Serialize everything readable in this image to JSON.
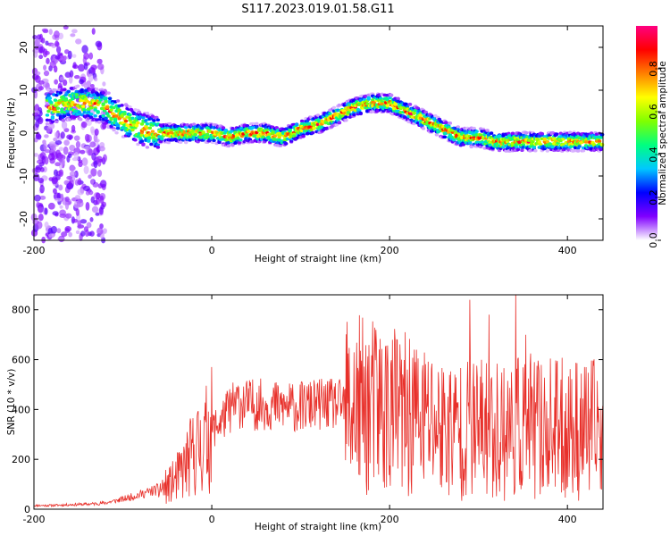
{
  "title": "S117.2023.019.01.58.G11",
  "chart_data": [
    {
      "type": "heatmap",
      "name": "spectrogram",
      "title": "S117.2023.019.01.58.G11",
      "xlabel": "Height of straight line (km)",
      "ylabel": "Frequency (Hz)",
      "xlim": [
        -200,
        440
      ],
      "ylim": [
        -25,
        25
      ],
      "xticks": [
        -200,
        0,
        200,
        400
      ],
      "yticks": [
        -20,
        -10,
        0,
        10,
        20
      ],
      "ridge_center_x": [
        -180,
        -160,
        -140,
        -120,
        -100,
        -80,
        -60,
        -40,
        -20,
        0,
        20,
        40,
        60,
        80,
        100,
        120,
        140,
        160,
        180,
        200,
        220,
        240,
        260,
        280,
        300,
        320,
        340,
        360,
        380,
        400,
        420,
        440
      ],
      "ridge_center_y": [
        6,
        7,
        7,
        6,
        3,
        1,
        0,
        0,
        0,
        0,
        -1,
        0,
        0,
        -1,
        1,
        2,
        4,
        6,
        7,
        7,
        5,
        3,
        1,
        -1,
        -1,
        -2,
        -2,
        -2,
        -2,
        -2,
        -2,
        -2
      ],
      "colorbar": {
        "label": "Normalized spectral amplitude",
        "range": [
          0,
          1
        ],
        "ticks": [
          "0.0",
          "0.2",
          "0.4",
          "0.6",
          "0.8"
        ],
        "colors": [
          "#ffffff",
          "#8000ff",
          "#0000ff",
          "#00c8ff",
          "#00ff80",
          "#80ff00",
          "#ffff00",
          "#ff8000",
          "#ff0000",
          "#ff0080"
        ]
      }
    },
    {
      "type": "line",
      "name": "snr",
      "xlabel": "Height of straight line (km)",
      "ylabel": "SNR (10 * v/v)",
      "xlim": [
        -200,
        440
      ],
      "ylim": [
        0,
        860
      ],
      "xticks": [
        -200,
        0,
        200,
        400
      ],
      "yticks": [
        0,
        200,
        400,
        600,
        800
      ],
      "color": "#e8302a",
      "series": [
        {
          "name": "SNR",
          "x": [
            -200,
            -180,
            -160,
            -140,
            -120,
            -100,
            -80,
            -60,
            -50,
            -40,
            -30,
            -20,
            -10,
            0,
            10,
            20,
            30,
            40,
            60,
            80,
            100,
            120,
            140,
            160,
            180,
            200,
            220,
            240,
            260,
            280,
            300,
            320,
            340,
            360,
            380,
            400,
            420,
            440
          ],
          "y": [
            15,
            15,
            18,
            20,
            25,
            40,
            60,
            80,
            90,
            120,
            170,
            230,
            260,
            320,
            350,
            400,
            430,
            420,
            420,
            410,
            410,
            420,
            420,
            410,
            410,
            400,
            370,
            360,
            330,
            320,
            320,
            320,
            330,
            330,
            320,
            320,
            320,
            320
          ]
        }
      ],
      "peaks": [
        {
          "x": 290,
          "y": 840
        },
        {
          "x": 312,
          "y": 780
        },
        {
          "x": 342,
          "y": 860
        },
        {
          "x": 353,
          "y": 700
        },
        {
          "x": 208,
          "y": 680
        },
        {
          "x": 228,
          "y": 640
        },
        {
          "x": 185,
          "y": 660
        }
      ]
    }
  ]
}
